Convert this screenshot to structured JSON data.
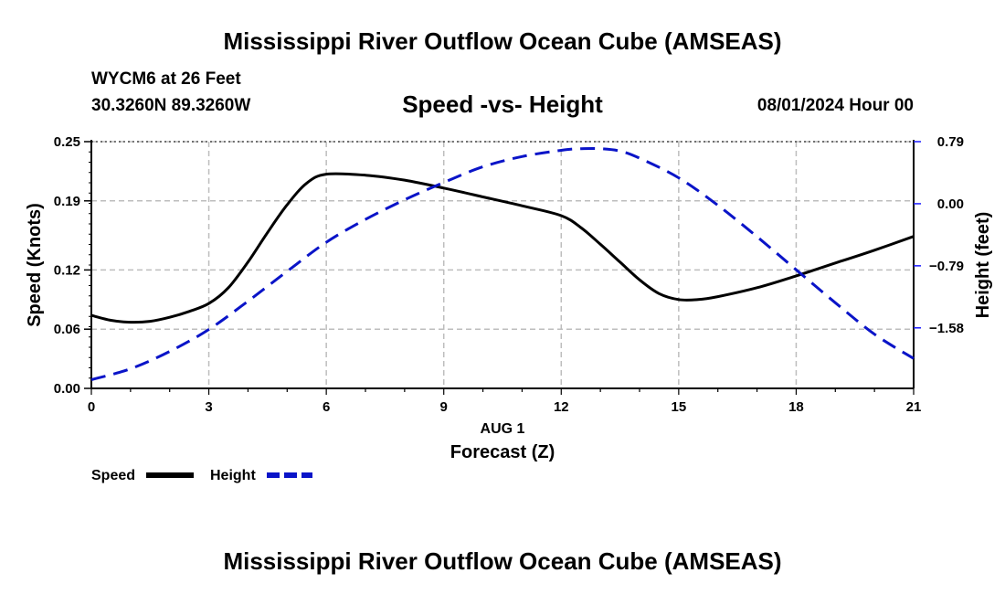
{
  "page": {
    "main_title": "Mississippi River Outflow Ocean Cube (AMSEAS)",
    "station": "WYCM6 at 26 Feet",
    "coords": "30.3260N  89.3260W",
    "datetime": "08/01/2024 Hour 00",
    "bottom_title": "Mississippi River Outflow Ocean Cube (AMSEAS)"
  },
  "chart_data": {
    "type": "line",
    "title": "Speed -vs- Height",
    "xlabel": "Forecast (Z)",
    "xdate_label": "AUG 1",
    "ylabel_left": "Speed (Knots)",
    "ylabel_right": "Height (feet)",
    "xlim": [
      0,
      21
    ],
    "ylim_left": [
      0,
      0.25
    ],
    "ylim_right": [
      -2.35,
      0.79
    ],
    "x_ticks": [
      0,
      3,
      6,
      9,
      12,
      15,
      18,
      21
    ],
    "y_ticks_left": [
      "0.00",
      "0.06",
      "0.12",
      "0.19",
      "0.25"
    ],
    "y_ticks_right": [
      "0.79",
      "0.00",
      "-0.79",
      "-1.58"
    ],
    "grid": true,
    "series": [
      {
        "name": "Speed",
        "axis": "left",
        "color": "#000000",
        "style": "solid",
        "x": [
          0,
          0.5,
          1,
          1.5,
          2,
          2.5,
          3,
          3.5,
          4,
          4.5,
          5,
          5.5,
          6,
          7,
          8,
          9,
          10,
          11,
          12,
          12.5,
          13,
          13.5,
          14,
          14.5,
          15,
          15.5,
          16,
          17,
          18,
          19,
          20,
          21
        ],
        "values": [
          0.074,
          0.069,
          0.067,
          0.068,
          0.072,
          0.078,
          0.086,
          0.102,
          0.128,
          0.158,
          0.186,
          0.208,
          0.217,
          0.216,
          0.211,
          0.203,
          0.194,
          0.185,
          0.175,
          0.163,
          0.146,
          0.128,
          0.11,
          0.096,
          0.09,
          0.09,
          0.093,
          0.102,
          0.114,
          0.127,
          0.14,
          0.154
        ]
      },
      {
        "name": "Height",
        "axis": "right",
        "color": "#0a14c8",
        "style": "dashed",
        "x": [
          0,
          1,
          2,
          3,
          4,
          5,
          6,
          7,
          8,
          9,
          10,
          11,
          12,
          12.5,
          13,
          13.5,
          14,
          15,
          16,
          17,
          18,
          19,
          20,
          21
        ],
        "values": [
          -2.24,
          -2.1,
          -1.88,
          -1.6,
          -1.24,
          -0.86,
          -0.49,
          -0.2,
          0.05,
          0.27,
          0.47,
          0.6,
          0.68,
          0.7,
          0.7,
          0.67,
          0.58,
          0.33,
          -0.02,
          -0.42,
          -0.84,
          -1.26,
          -1.66,
          -1.97
        ]
      }
    ],
    "legend": [
      {
        "label": "Speed",
        "color": "#000000",
        "style": "solid"
      },
      {
        "label": "Height",
        "color": "#0a14c8",
        "style": "dashed"
      }
    ],
    "legend_position": "bottom-left"
  }
}
